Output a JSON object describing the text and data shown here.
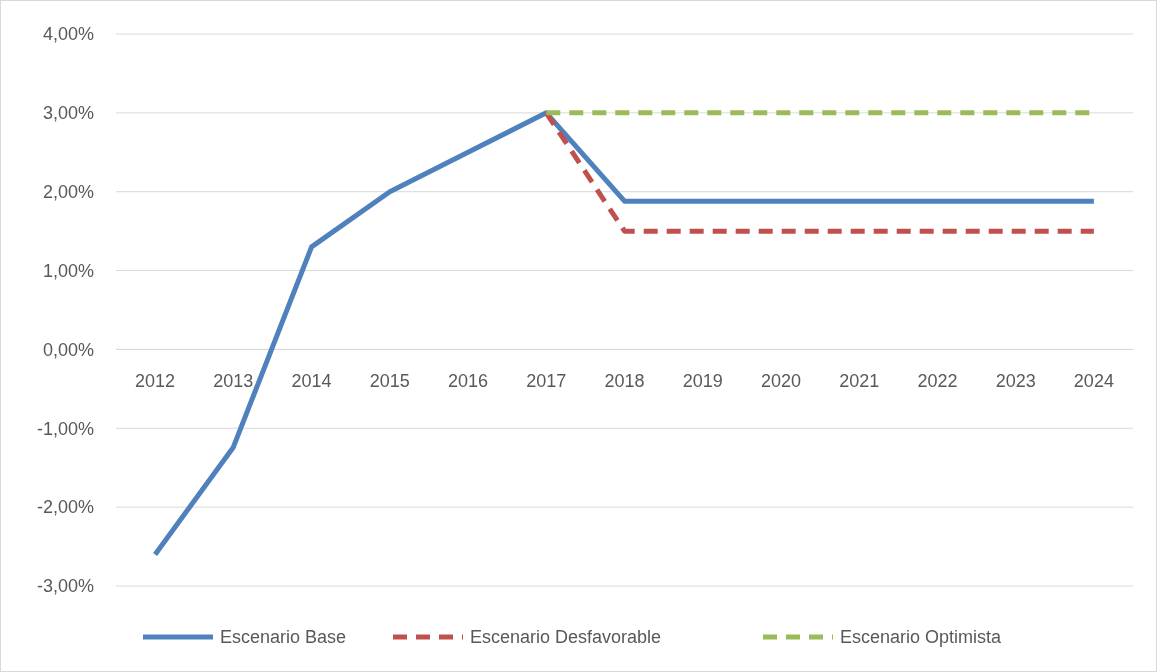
{
  "chart_data": {
    "type": "line",
    "categories": [
      "2012",
      "2013",
      "2014",
      "2015",
      "2016",
      "2017",
      "2018",
      "2019",
      "2020",
      "2021",
      "2022",
      "2023",
      "2024"
    ],
    "series": [
      {
        "name": "Escenario Base",
        "color": "#4f81bd",
        "line_style": "solid",
        "values": [
          -2.6,
          -1.24,
          1.3,
          2.0,
          2.5,
          3.0,
          1.88,
          1.88,
          1.88,
          1.88,
          1.88,
          1.88,
          1.88
        ]
      },
      {
        "name": "Escenario Desfavorable",
        "color": "#c0504d",
        "line_style": "dashed",
        "values": [
          null,
          null,
          null,
          null,
          null,
          3.0,
          1.5,
          1.5,
          1.5,
          1.5,
          1.5,
          1.5,
          1.5
        ]
      },
      {
        "name": "Escenario Optimista",
        "color": "#9bbb59",
        "line_style": "dashed",
        "values": [
          null,
          null,
          null,
          null,
          null,
          3.0,
          3.0,
          3.0,
          3.0,
          3.0,
          3.0,
          3.0,
          3.0
        ]
      }
    ],
    "ylim": [
      -3,
      4
    ],
    "yticks": [
      {
        "value": -3,
        "label": "-3,00%"
      },
      {
        "value": -2,
        "label": "-2,00%"
      },
      {
        "value": -1,
        "label": "-1,00%"
      },
      {
        "value": 0,
        "label": "0,00%"
      },
      {
        "value": 1,
        "label": "1,00%"
      },
      {
        "value": 2,
        "label": "2,00%"
      },
      {
        "value": 3,
        "label": "3,00%"
      },
      {
        "value": 4,
        "label": "4,00%"
      }
    ],
    "grid": "y",
    "legend": "bottom",
    "marker": "none"
  }
}
